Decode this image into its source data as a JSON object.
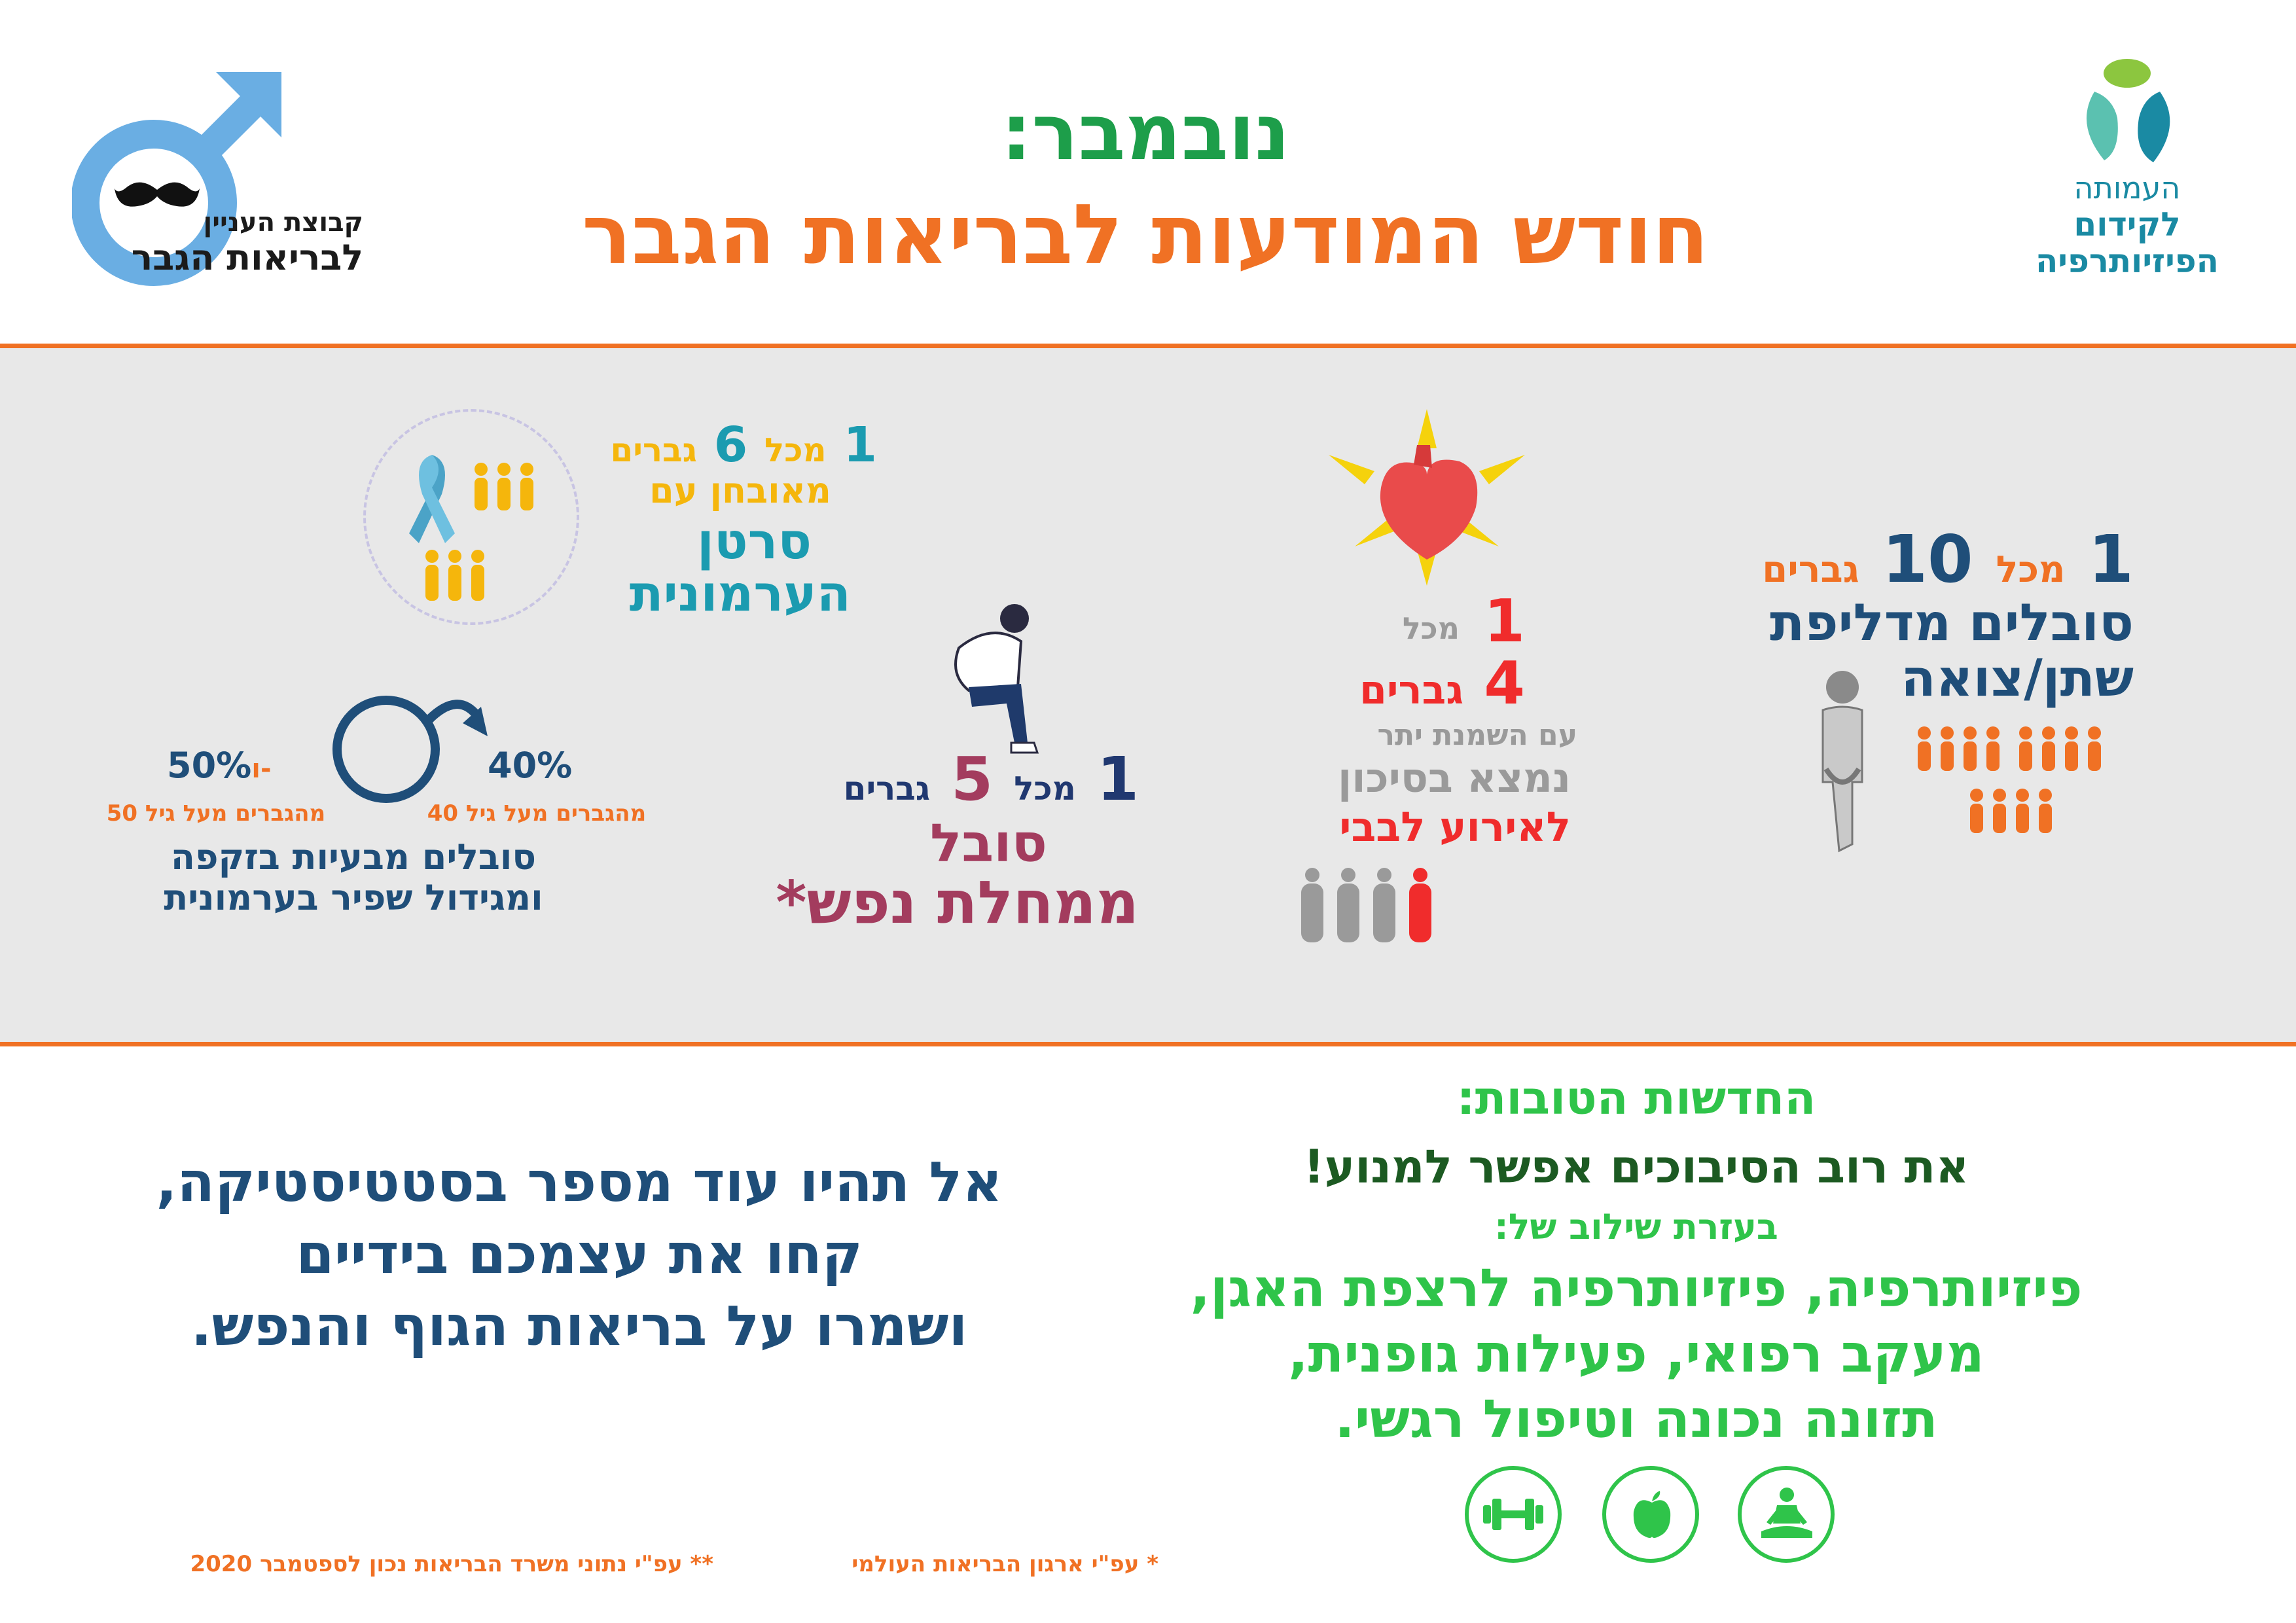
{
  "header": {
    "title_line1": "נובמבר:",
    "title_line2": "חודש המודעות לבריאות הגבר",
    "logo_right": {
      "line1": "העמותה",
      "line2": "לקידום",
      "line3": "הפיזיותרפיה"
    },
    "logo_left": {
      "line1": "קבוצת העניין",
      "line2": "לבריאות הגבר"
    }
  },
  "stats": {
    "incontinence": {
      "count": "1",
      "of": "מכל",
      "total": "10",
      "men": "גברים",
      "line2": "סובלים מדליפת",
      "line3": "שתן/צואה"
    },
    "heart": {
      "count": "1",
      "of": "מכל",
      "total": "4",
      "men": "גברים",
      "line3": "עם השמנת יתר",
      "line4": "נמצא בסיכון",
      "line5": "לאירוע לבבי"
    },
    "mental": {
      "count": "1",
      "of": "מכל",
      "total": "5",
      "men": "גברים",
      "line2": "סובל",
      "line3": "ממחלת נפש",
      "star": "*"
    },
    "prostate_cancer": {
      "count": "1",
      "of": "מכל",
      "total": "6",
      "men": "גברים",
      "line2": "מאובחן עם",
      "line3": "סרטן",
      "line4": "הערמונית"
    },
    "erectile": {
      "pct1": "40%",
      "pct1_desc": "מהגברים מעל גיל 40",
      "and": "ו-",
      "pct2": "50%",
      "pct2_desc": "מהגברים מעל גיל 50",
      "line3": "סובלים מבעיות בזקפה",
      "line4": "ומגידול שפיר בערמונית"
    }
  },
  "good_news": {
    "title": "החדשות הטובות:",
    "subtitle": "את רוב הסיבוכים אפשר למנוע!",
    "with": "בעזרת שילוב של:",
    "line1": "פיזיותרפיה, פיזיותרפיה לרצפת האגן,",
    "line2": "מעקב רפואי, פעילות גופנית,",
    "line3": "תזונה נכונה וטיפול רגשי."
  },
  "call_to_action": {
    "line1": "אל תהיו עוד מספר בסטטיסטיקה,",
    "line2": "קחו את עצמכם בידיים",
    "line3": "ושמרו על בריאות הגוף והנפש."
  },
  "footnotes": {
    "note1": "*   עפ\"י ארגון הבריאות העולמי",
    "note2": "** עפ\"י נתוני משרד הבריאות נכון לספטמבר 2020"
  },
  "icons": [
    "logo-figure-icon",
    "male-symbol-icon",
    "mustache-icon",
    "heart-icon",
    "ribbon-icon",
    "thinking-man-icon",
    "incontinence-figure-icon",
    "dumbbell-icon",
    "apple-icon",
    "meditation-icon"
  ],
  "colors": {
    "orange": "#f07124",
    "green": "#1d9e4a",
    "light_green": "#2fc44a",
    "blue": "#1f4e79",
    "teal": "#1b9bb0",
    "yellow": "#f5b60c",
    "red": "#f02c2c",
    "grey_band": "#e8e8e8"
  }
}
